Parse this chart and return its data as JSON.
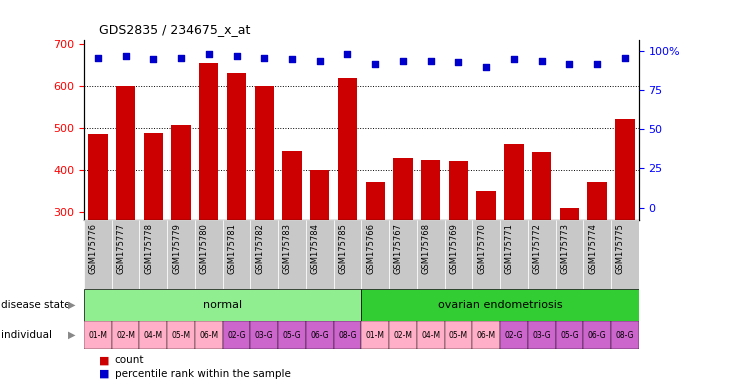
{
  "title": "GDS2835 / 234675_x_at",
  "samples": [
    "GSM175776",
    "GSM175777",
    "GSM175778",
    "GSM175779",
    "GSM175780",
    "GSM175781",
    "GSM175782",
    "GSM175783",
    "GSM175784",
    "GSM175785",
    "GSM175766",
    "GSM175767",
    "GSM175768",
    "GSM175769",
    "GSM175770",
    "GSM175771",
    "GSM175772",
    "GSM175773",
    "GSM175774",
    "GSM175775"
  ],
  "counts": [
    487,
    601,
    489,
    508,
    656,
    631,
    601,
    446,
    400,
    621,
    370,
    428,
    424,
    421,
    349,
    462,
    442,
    308,
    370,
    521
  ],
  "percentile_ranks": [
    96,
    97,
    95,
    96,
    98,
    97,
    96,
    95,
    94,
    98,
    92,
    94,
    94,
    93,
    90,
    95,
    94,
    92,
    92,
    96
  ],
  "disease_state_groups": [
    {
      "label": "normal",
      "start": 0,
      "end": 10,
      "color": "#90EE90"
    },
    {
      "label": "ovarian endometriosis",
      "start": 10,
      "end": 20,
      "color": "#32CD32"
    }
  ],
  "individual_labels": [
    "01-M",
    "02-M",
    "04-M",
    "05-M",
    "06-M",
    "02-G",
    "03-G",
    "05-G",
    "06-G",
    "08-G",
    "01-M",
    "02-M",
    "04-M",
    "05-M",
    "06-M",
    "02-G",
    "03-G",
    "05-G",
    "06-G",
    "08-G"
  ],
  "individual_colors": [
    "#FFB0C8",
    "#FFB0C8",
    "#FFB0C8",
    "#FFB0C8",
    "#FFB0C8",
    "#CC66CC",
    "#CC66CC",
    "#CC66CC",
    "#CC66CC",
    "#CC66CC",
    "#FFB0C8",
    "#FFB0C8",
    "#FFB0C8",
    "#FFB0C8",
    "#FFB0C8",
    "#CC66CC",
    "#CC66CC",
    "#CC66CC",
    "#CC66CC",
    "#CC66CC"
  ],
  "bar_color": "#CC0000",
  "dot_color": "#0000CC",
  "ylim_left": [
    280,
    710
  ],
  "ylim_right": [
    -8,
    107
  ],
  "yticks_left": [
    300,
    400,
    500,
    600,
    700
  ],
  "yticks_right": [
    0,
    25,
    50,
    75,
    100
  ],
  "grid_values": [
    400,
    500,
    600
  ],
  "bar_bg_color": "#C8C8C8",
  "xticklabel_bg": "#C8C8C8"
}
